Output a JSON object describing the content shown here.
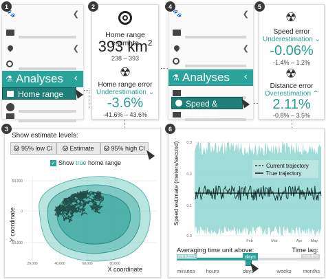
{
  "badges": [
    "1",
    "2",
    "3",
    "4",
    "5",
    "6"
  ],
  "panel1": {
    "analyses_label": "Analyses",
    "sub_label": "Home range"
  },
  "panel2": {
    "title": "Home range estimate",
    "value": "393 km",
    "value_sup": "2",
    "range": "238 – 393",
    "error_title": "Home range error",
    "error_status": "Underestimation",
    "error_value": "-3.6%",
    "error_range": "-41.6% – 43.6%"
  },
  "panel4": {
    "analyses_label": "Analyses",
    "sub_label": "Speed & distance"
  },
  "panel5": {
    "speed_title": "Speed error",
    "speed_status": "Underestimation",
    "speed_value": "-0.06%",
    "speed_range": "-1.4% – 1.2%",
    "dist_title": "Distance error",
    "dist_status": "Overestimation",
    "dist_value": "2.11%",
    "dist_range": "-0.8% – 3.5%"
  },
  "panel3": {
    "heading": "Show estimate levels:",
    "chips": [
      "95% low CI",
      "Estimate",
      "95% high CI"
    ],
    "checkbox_prefix": "Show ",
    "checkbox_true": "true",
    "checkbox_suffix": " home range",
    "ylabel": "Y coordinate",
    "xlabel": "X coordinate",
    "yticks": [
      "50,000",
      "0",
      "-50,000"
    ],
    "xticks": [
      "20,000",
      "40,000",
      "60,000",
      "80,000"
    ]
  },
  "panel6": {
    "ylabel": "Speed estimate (meters/second)",
    "yticks": [
      "0.3",
      "0.2",
      "0.1",
      "0.0"
    ],
    "xticks": [
      "Feb",
      "Mar",
      "Apr",
      "May"
    ],
    "legend": [
      "Current trajectory",
      "True trajectory"
    ],
    "averaging_label": "Averaging time unit above:",
    "timelag_label": "Time lag:",
    "slider_left": "minutes",
    "slider_right": "months",
    "slider_value": "days",
    "slider_ticks": [
      "minutes",
      "hours",
      "days",
      "weeks",
      "months"
    ]
  },
  "colors": {
    "teal": "#2aa39b",
    "teal_dark": "#1f7f78",
    "band": "#7fcfc9",
    "line": "#1a3d3a"
  }
}
